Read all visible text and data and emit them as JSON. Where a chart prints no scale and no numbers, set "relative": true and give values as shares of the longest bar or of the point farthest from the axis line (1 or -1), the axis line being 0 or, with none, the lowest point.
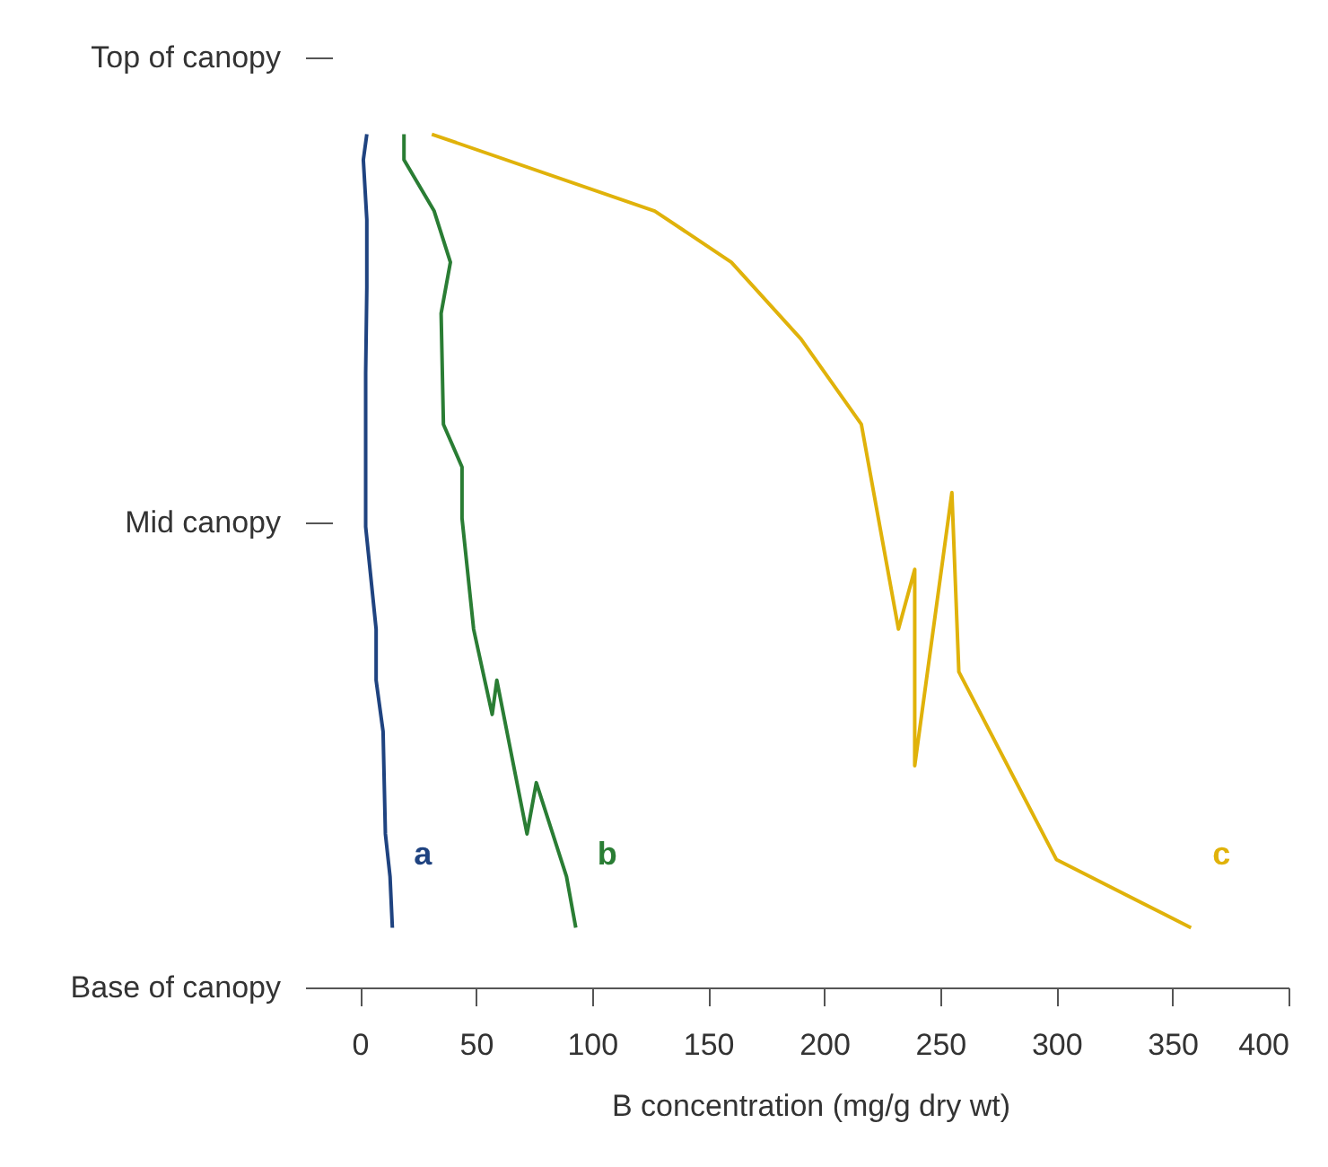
{
  "chart_data": {
    "type": "line",
    "xlabel": "B concentration (mg/g dry wt)",
    "xlim": [
      -12,
      400
    ],
    "xticks": [
      0,
      50,
      100,
      150,
      200,
      250,
      300,
      350,
      400
    ],
    "relative": true,
    "annotations": [
      "Top of canopy",
      "Mid canopy",
      "Base of canopy"
    ],
    "grid": false,
    "legend": false,
    "marker": "none",
    "line_style": "solid",
    "series": [
      {
        "name": "a",
        "color": "#1f4380",
        "x": [
          3,
          1.5,
          3,
          3,
          2.5,
          2.5,
          7,
          7,
          10,
          11,
          13,
          14
        ],
        "values": [
          1,
          0.97,
          0.9,
          0.82,
          0.72,
          0.54,
          0.42,
          0.36,
          0.3,
          0.18,
          0.13,
          0.07
        ]
      },
      {
        "name": "b",
        "color": "#2a7d34",
        "x": [
          19,
          19,
          32,
          39,
          35,
          36,
          44,
          44,
          49,
          57,
          59,
          72,
          76,
          89,
          93
        ],
        "values": [
          1,
          0.97,
          0.91,
          0.85,
          0.79,
          0.66,
          0.61,
          0.55,
          0.42,
          0.32,
          0.36,
          0.18,
          0.24,
          0.13,
          0.07
        ]
      },
      {
        "name": "c",
        "color": "#e0b20a",
        "x": [
          31,
          127,
          160,
          190,
          216,
          232,
          239,
          239,
          255,
          258,
          300,
          358
        ],
        "values": [
          1,
          0.91,
          0.85,
          0.76,
          0.66,
          0.42,
          0.49,
          0.26,
          0.58,
          0.37,
          0.15,
          0.07
        ]
      }
    ]
  }
}
